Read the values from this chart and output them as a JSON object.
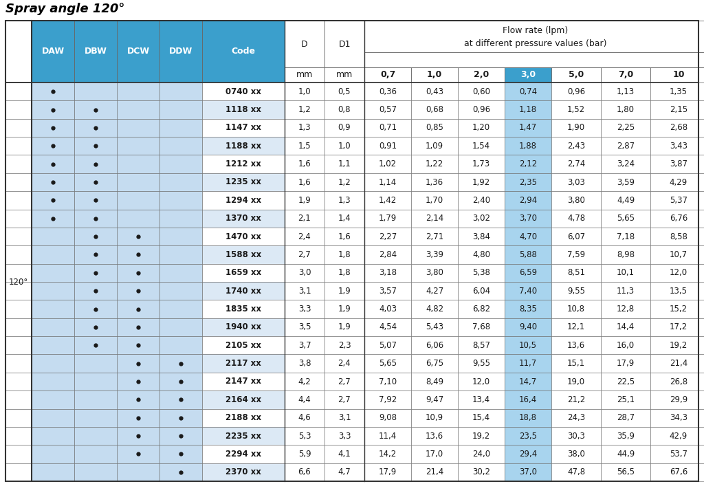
{
  "title": "Spray angle 120°",
  "blue_header_bg": "#3B9FCC",
  "blue_light_bg": "#C5DCF0",
  "blue_30_header": "#3B9FCC",
  "blue_30_cell": "#A8D4EE",
  "white": "#FFFFFF",
  "row_even_bg": "#FFFFFF",
  "row_odd_bg": "#DCE9F5",
  "text_color": "#1A1A1A",
  "pressure_headers": [
    "0,7",
    "1,0",
    "2,0",
    "3,0",
    "5,0",
    "7,0",
    "10"
  ],
  "spray_angle_label": "120°",
  "rows": [
    {
      "DAW": true,
      "DBW": false,
      "DCW": false,
      "DDW": false,
      "code": "0740 xx",
      "D": "1,0",
      "D1": "0,5",
      "f07": "0,36",
      "f10": "0,43",
      "f20": "0,60",
      "f30": "0,74",
      "f50": "0,96",
      "f70": "1,13",
      "f100": "1,35"
    },
    {
      "DAW": true,
      "DBW": true,
      "DCW": false,
      "DDW": false,
      "code": "1118 xx",
      "D": "1,2",
      "D1": "0,8",
      "f07": "0,57",
      "f10": "0,68",
      "f20": "0,96",
      "f30": "1,18",
      "f50": "1,52",
      "f70": "1,80",
      "f100": "2,15"
    },
    {
      "DAW": true,
      "DBW": true,
      "DCW": false,
      "DDW": false,
      "code": "1147 xx",
      "D": "1,3",
      "D1": "0,9",
      "f07": "0,71",
      "f10": "0,85",
      "f20": "1,20",
      "f30": "1,47",
      "f50": "1,90",
      "f70": "2,25",
      "f100": "2,68"
    },
    {
      "DAW": true,
      "DBW": true,
      "DCW": false,
      "DDW": false,
      "code": "1188 xx",
      "D": "1,5",
      "D1": "1,0",
      "f07": "0,91",
      "f10": "1,09",
      "f20": "1,54",
      "f30": "1,88",
      "f50": "2,43",
      "f70": "2,87",
      "f100": "3,43"
    },
    {
      "DAW": true,
      "DBW": true,
      "DCW": false,
      "DDW": false,
      "code": "1212 xx",
      "D": "1,6",
      "D1": "1,1",
      "f07": "1,02",
      "f10": "1,22",
      "f20": "1,73",
      "f30": "2,12",
      "f50": "2,74",
      "f70": "3,24",
      "f100": "3,87"
    },
    {
      "DAW": true,
      "DBW": true,
      "DCW": false,
      "DDW": false,
      "code": "1235 xx",
      "D": "1,6",
      "D1": "1,2",
      "f07": "1,14",
      "f10": "1,36",
      "f20": "1,92",
      "f30": "2,35",
      "f50": "3,03",
      "f70": "3,59",
      "f100": "4,29"
    },
    {
      "DAW": true,
      "DBW": true,
      "DCW": false,
      "DDW": false,
      "code": "1294 xx",
      "D": "1,9",
      "D1": "1,3",
      "f07": "1,42",
      "f10": "1,70",
      "f20": "2,40",
      "f30": "2,94",
      "f50": "3,80",
      "f70": "4,49",
      "f100": "5,37"
    },
    {
      "DAW": true,
      "DBW": true,
      "DCW": false,
      "DDW": false,
      "code": "1370 xx",
      "D": "2,1",
      "D1": "1,4",
      "f07": "1,79",
      "f10": "2,14",
      "f20": "3,02",
      "f30": "3,70",
      "f50": "4,78",
      "f70": "5,65",
      "f100": "6,76"
    },
    {
      "DAW": false,
      "DBW": true,
      "DCW": true,
      "DDW": false,
      "code": "1470 xx",
      "D": "2,4",
      "D1": "1,6",
      "f07": "2,27",
      "f10": "2,71",
      "f20": "3,84",
      "f30": "4,70",
      "f50": "6,07",
      "f70": "7,18",
      "f100": "8,58"
    },
    {
      "DAW": false,
      "DBW": true,
      "DCW": true,
      "DDW": false,
      "code": "1588 xx",
      "D": "2,7",
      "D1": "1,8",
      "f07": "2,84",
      "f10": "3,39",
      "f20": "4,80",
      "f30": "5,88",
      "f50": "7,59",
      "f70": "8,98",
      "f100": "10,7"
    },
    {
      "DAW": false,
      "DBW": true,
      "DCW": true,
      "DDW": false,
      "code": "1659 xx",
      "D": "3,0",
      "D1": "1,8",
      "f07": "3,18",
      "f10": "3,80",
      "f20": "5,38",
      "f30": "6,59",
      "f50": "8,51",
      "f70": "10,1",
      "f100": "12,0"
    },
    {
      "DAW": false,
      "DBW": true,
      "DCW": true,
      "DDW": false,
      "code": "1740 xx",
      "D": "3,1",
      "D1": "1,9",
      "f07": "3,57",
      "f10": "4,27",
      "f20": "6,04",
      "f30": "7,40",
      "f50": "9,55",
      "f70": "11,3",
      "f100": "13,5"
    },
    {
      "DAW": false,
      "DBW": true,
      "DCW": true,
      "DDW": false,
      "code": "1835 xx",
      "D": "3,3",
      "D1": "1,9",
      "f07": "4,03",
      "f10": "4,82",
      "f20": "6,82",
      "f30": "8,35",
      "f50": "10,8",
      "f70": "12,8",
      "f100": "15,2"
    },
    {
      "DAW": false,
      "DBW": true,
      "DCW": true,
      "DDW": false,
      "code": "1940 xx",
      "D": "3,5",
      "D1": "1,9",
      "f07": "4,54",
      "f10": "5,43",
      "f20": "7,68",
      "f30": "9,40",
      "f50": "12,1",
      "f70": "14,4",
      "f100": "17,2"
    },
    {
      "DAW": false,
      "DBW": true,
      "DCW": true,
      "DDW": false,
      "code": "2105 xx",
      "D": "3,7",
      "D1": "2,3",
      "f07": "5,07",
      "f10": "6,06",
      "f20": "8,57",
      "f30": "10,5",
      "f50": "13,6",
      "f70": "16,0",
      "f100": "19,2"
    },
    {
      "DAW": false,
      "DBW": false,
      "DCW": true,
      "DDW": true,
      "code": "2117 xx",
      "D": "3,8",
      "D1": "2,4",
      "f07": "5,65",
      "f10": "6,75",
      "f20": "9,55",
      "f30": "11,7",
      "f50": "15,1",
      "f70": "17,9",
      "f100": "21,4"
    },
    {
      "DAW": false,
      "DBW": false,
      "DCW": true,
      "DDW": true,
      "code": "2147 xx",
      "D": "4,2",
      "D1": "2,7",
      "f07": "7,10",
      "f10": "8,49",
      "f20": "12,0",
      "f30": "14,7",
      "f50": "19,0",
      "f70": "22,5",
      "f100": "26,8"
    },
    {
      "DAW": false,
      "DBW": false,
      "DCW": true,
      "DDW": true,
      "code": "2164 xx",
      "D": "4,4",
      "D1": "2,7",
      "f07": "7,92",
      "f10": "9,47",
      "f20": "13,4",
      "f30": "16,4",
      "f50": "21,2",
      "f70": "25,1",
      "f100": "29,9"
    },
    {
      "DAW": false,
      "DBW": false,
      "DCW": true,
      "DDW": true,
      "code": "2188 xx",
      "D": "4,6",
      "D1": "3,1",
      "f07": "9,08",
      "f10": "10,9",
      "f20": "15,4",
      "f30": "18,8",
      "f50": "24,3",
      "f70": "28,7",
      "f100": "34,3"
    },
    {
      "DAW": false,
      "DBW": false,
      "DCW": true,
      "DDW": true,
      "code": "2235 xx",
      "D": "5,3",
      "D1": "3,3",
      "f07": "11,4",
      "f10": "13,6",
      "f20": "19,2",
      "f30": "23,5",
      "f50": "30,3",
      "f70": "35,9",
      "f100": "42,9"
    },
    {
      "DAW": false,
      "DBW": false,
      "DCW": true,
      "DDW": true,
      "code": "2294 xx",
      "D": "5,9",
      "D1": "4,1",
      "f07": "14,2",
      "f10": "17,0",
      "f20": "24,0",
      "f30": "29,4",
      "f50": "38,0",
      "f70": "44,9",
      "f100": "53,7"
    },
    {
      "DAW": false,
      "DBW": false,
      "DCW": false,
      "DDW": true,
      "code": "2370 xx",
      "D": "6,6",
      "D1": "4,7",
      "f07": "17,9",
      "f10": "21,4",
      "f20": "30,2",
      "f30": "37,0",
      "f50": "47,8",
      "f70": "56,5",
      "f100": "67,6"
    }
  ]
}
